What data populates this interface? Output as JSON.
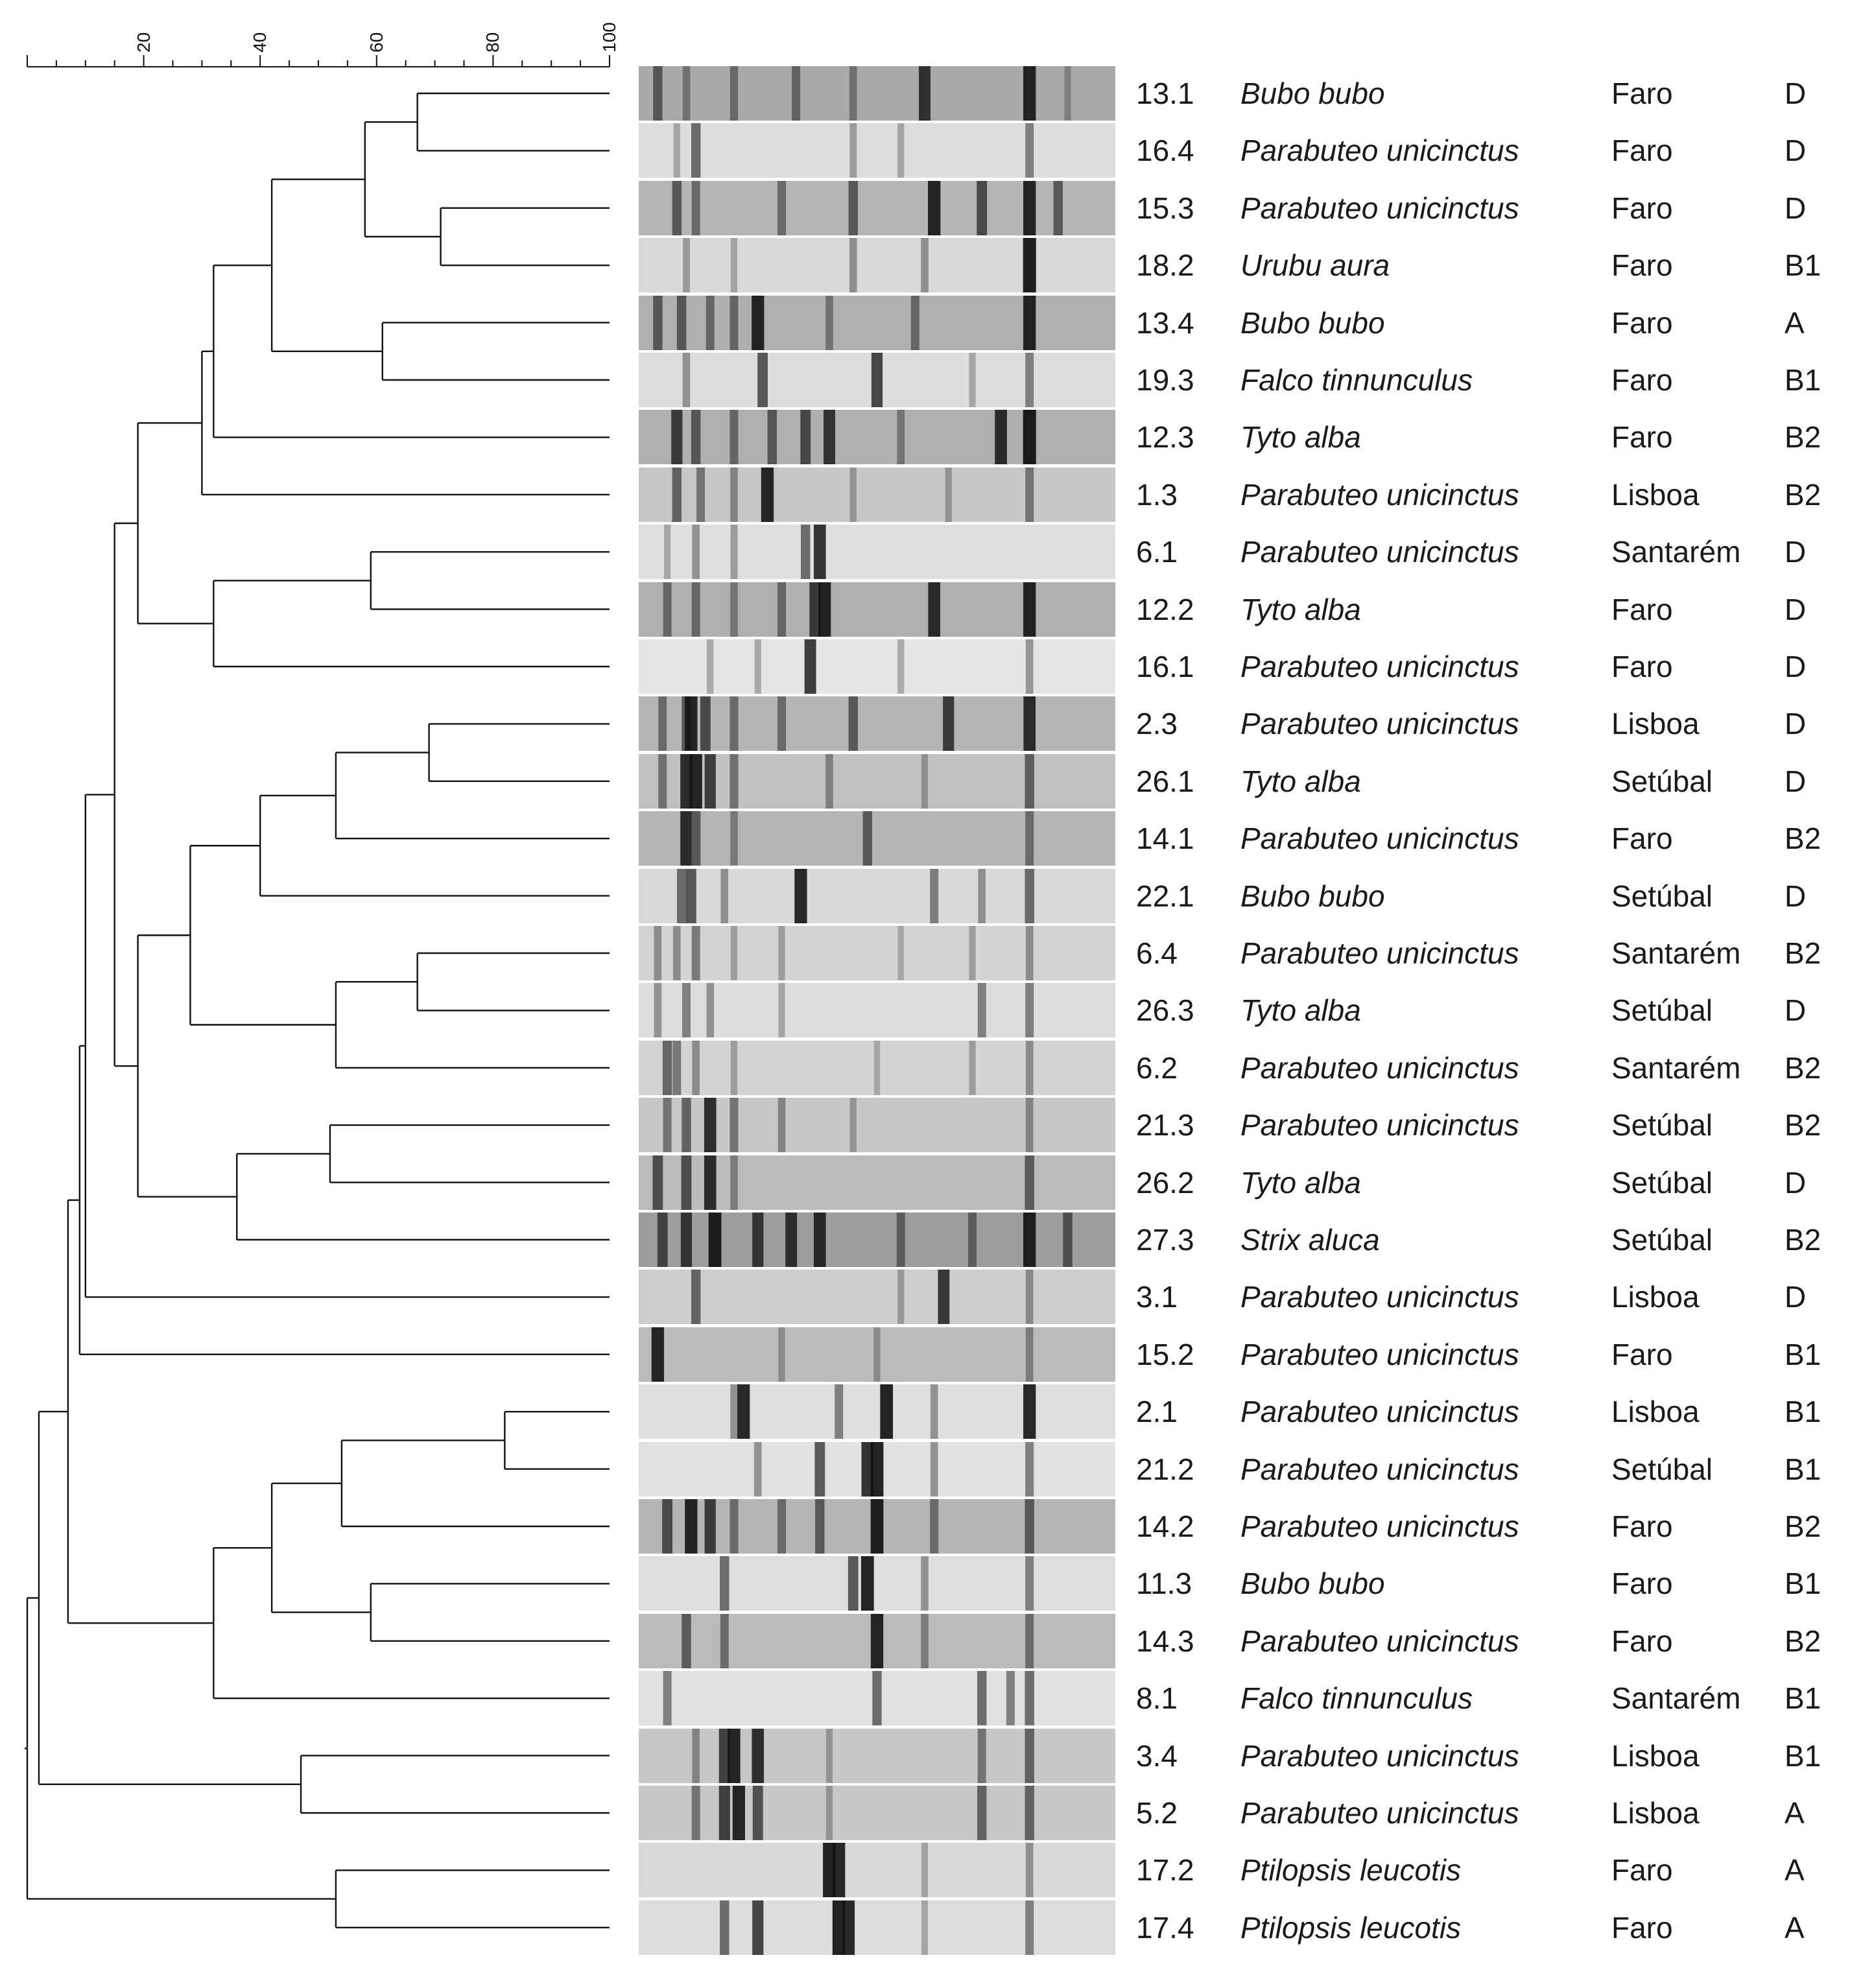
{
  "scale": {
    "ticks": [
      "20",
      "40",
      "60",
      "80",
      "100"
    ]
  },
  "isolates": [
    {
      "id": "13.1",
      "species": "Bubo bubo",
      "location": "Faro",
      "group": "D"
    },
    {
      "id": "16.4",
      "species": "Parabuteo unicinctus",
      "location": "Faro",
      "group": "D"
    },
    {
      "id": "15.3",
      "species": "Parabuteo unicinctus",
      "location": "Faro",
      "group": "D"
    },
    {
      "id": "18.2",
      "species": "Urubu aura",
      "location": "Faro",
      "group": "B1"
    },
    {
      "id": "13.4",
      "species": "Bubo bubo",
      "location": "Faro",
      "group": "A"
    },
    {
      "id": "19.3",
      "species": "Falco tinnunculus",
      "location": "Faro",
      "group": "B1"
    },
    {
      "id": "12.3",
      "species": "Tyto alba",
      "location": "Faro",
      "group": "B2"
    },
    {
      "id": "1.3",
      "species": "Parabuteo unicinctus",
      "location": "Lisboa",
      "group": "B2"
    },
    {
      "id": "6.1",
      "species": "Parabuteo unicinctus",
      "location": "Santarém",
      "group": "D"
    },
    {
      "id": "12.2",
      "species": "Tyto alba",
      "location": "Faro",
      "group": "D"
    },
    {
      "id": "16.1",
      "species": "Parabuteo unicinctus",
      "location": "Faro",
      "group": "D"
    },
    {
      "id": "2.3",
      "species": "Parabuteo unicinctus",
      "location": "Lisboa",
      "group": "D"
    },
    {
      "id": "26.1",
      "species": "Tyto alba",
      "location": "Setúbal",
      "group": "D"
    },
    {
      "id": "14.1",
      "species": "Parabuteo unicinctus",
      "location": "Faro",
      "group": "B2"
    },
    {
      "id": "22.1",
      "species": "Bubo bubo",
      "location": "Setúbal",
      "group": "D"
    },
    {
      "id": "6.4",
      "species": "Parabuteo unicinctus",
      "location": "Santarém",
      "group": "B2"
    },
    {
      "id": "26.3",
      "species": "Tyto alba",
      "location": "Setúbal",
      "group": "D"
    },
    {
      "id": "6.2",
      "species": "Parabuteo unicinctus",
      "location": "Santarém",
      "group": "B2"
    },
    {
      "id": "21.3",
      "species": "Parabuteo unicinctus",
      "location": "Setúbal",
      "group": "B2"
    },
    {
      "id": "26.2",
      "species": "Tyto alba",
      "location": "Setúbal",
      "group": "D"
    },
    {
      "id": "27.3",
      "species": "Strix aluca",
      "location": "Setúbal",
      "group": "B2"
    },
    {
      "id": "3.1",
      "species": "Parabuteo unicinctus",
      "location": "Lisboa",
      "group": "D"
    },
    {
      "id": "15.2",
      "species": "Parabuteo unicinctus",
      "location": "Faro",
      "group": "B1"
    },
    {
      "id": "2.1",
      "species": "Parabuteo unicinctus",
      "location": "Lisboa",
      "group": "B1"
    },
    {
      "id": "21.2",
      "species": "Parabuteo unicinctus",
      "location": "Setúbal",
      "group": "B1"
    },
    {
      "id": "14.2",
      "species": "Parabuteo unicinctus",
      "location": "Faro",
      "group": "B2"
    },
    {
      "id": "11.3",
      "species": "Bubo bubo",
      "location": "Faro",
      "group": "B1"
    },
    {
      "id": "14.3",
      "species": "Parabuteo unicinctus",
      "location": "Faro",
      "group": "B2"
    },
    {
      "id": "8.1",
      "species": "Falco tinnunculus",
      "location": "Santarém",
      "group": "B1"
    },
    {
      "id": "3.4",
      "species": "Parabuteo unicinctus",
      "location": "Lisboa",
      "group": "B1"
    },
    {
      "id": "5.2",
      "species": "Parabuteo unicinctus",
      "location": "Lisboa",
      "group": "A"
    },
    {
      "id": "17.2",
      "species": "Ptilopsis leucotis",
      "location": "Faro",
      "group": "A"
    },
    {
      "id": "17.4",
      "species": "Ptilopsis leucotis",
      "location": "Faro",
      "group": "A"
    }
  ],
  "dendrogram": {
    "nodes": [
      {
        "id": "n1",
        "a": 0,
        "b": 1,
        "similarity": 67
      },
      {
        "id": "n2",
        "a": 2,
        "b": 3,
        "similarity": 71
      },
      {
        "id": "n3",
        "a": "n1",
        "b": "n2",
        "similarity": 58
      },
      {
        "id": "n4",
        "a": 4,
        "b": 5,
        "similarity": 61
      },
      {
        "id": "n5",
        "a": "n3",
        "b": "n4",
        "similarity": 42
      },
      {
        "id": "n6",
        "a": "n5",
        "b": 6,
        "similarity": 32
      },
      {
        "id": "n7",
        "a": "n6",
        "b": 7,
        "similarity": 30
      },
      {
        "id": "n8",
        "a": 8,
        "b": 9,
        "similarity": 59
      },
      {
        "id": "n9",
        "a": "n8",
        "b": 10,
        "similarity": 32
      },
      {
        "id": "n10",
        "a": "n7",
        "b": "n9",
        "similarity": 19
      },
      {
        "id": "n11",
        "a": 11,
        "b": 12,
        "similarity": 69
      },
      {
        "id": "n12",
        "a": "n11",
        "b": 13,
        "similarity": 53
      },
      {
        "id": "n13",
        "a": "n12",
        "b": 14,
        "similarity": 40
      },
      {
        "id": "n14",
        "a": 15,
        "b": 16,
        "similarity": 67
      },
      {
        "id": "n15",
        "a": "n14",
        "b": 17,
        "similarity": 53
      },
      {
        "id": "n16",
        "a": "n13",
        "b": "n15",
        "similarity": 28
      },
      {
        "id": "n17",
        "a": 18,
        "b": 19,
        "similarity": 52
      },
      {
        "id": "n18",
        "a": "n17",
        "b": 20,
        "similarity": 36
      },
      {
        "id": "n19",
        "a": "n16",
        "b": "n18",
        "similarity": 19
      },
      {
        "id": "n20",
        "a": "n10",
        "b": "n19",
        "similarity": 15
      },
      {
        "id": "n21",
        "a": "n20",
        "b": 21,
        "similarity": 10
      },
      {
        "id": "n22",
        "a": "n21",
        "b": 22,
        "similarity": 9
      },
      {
        "id": "n23",
        "a": 23,
        "b": 24,
        "similarity": 82
      },
      {
        "id": "n24",
        "a": "n23",
        "b": 25,
        "similarity": 54
      },
      {
        "id": "n25",
        "a": 26,
        "b": 27,
        "similarity": 59
      },
      {
        "id": "n26",
        "a": "n24",
        "b": "n25",
        "similarity": 42
      },
      {
        "id": "n27",
        "a": "n26",
        "b": 28,
        "similarity": 32
      },
      {
        "id": "n28",
        "a": "n22",
        "b": "n27",
        "similarity": 7
      },
      {
        "id": "n29",
        "a": 29,
        "b": 30,
        "similarity": 47
      },
      {
        "id": "n30",
        "a": "n28",
        "b": "n29",
        "similarity": 2
      },
      {
        "id": "n31",
        "a": 31,
        "b": 32,
        "similarity": 53
      },
      {
        "id": "n32",
        "a": "n30",
        "b": "n31",
        "similarity": 0
      }
    ]
  },
  "gel_lanes": [
    {
      "bg": 0.55,
      "bands": [
        [
          0.04,
          0.6
        ],
        [
          0.1,
          0.4
        ],
        [
          0.2,
          0.45
        ],
        [
          0.33,
          0.5
        ],
        [
          0.45,
          0.4
        ],
        [
          0.6,
          0.85
        ],
        [
          0.82,
          0.95
        ],
        [
          0.9,
          0.3
        ]
      ]
    },
    {
      "bg": 0.12,
      "bands": [
        [
          0.08,
          0.3
        ],
        [
          0.12,
          0.6
        ],
        [
          0.45,
          0.35
        ],
        [
          0.55,
          0.3
        ],
        [
          0.82,
          0.5
        ]
      ]
    },
    {
      "bg": 0.45,
      "bands": [
        [
          0.08,
          0.6
        ],
        [
          0.12,
          0.5
        ],
        [
          0.3,
          0.5
        ],
        [
          0.45,
          0.6
        ],
        [
          0.62,
          0.95
        ],
        [
          0.72,
          0.7
        ],
        [
          0.82,
          0.95
        ],
        [
          0.88,
          0.6
        ]
      ]
    },
    {
      "bg": 0.15,
      "bands": [
        [
          0.1,
          0.35
        ],
        [
          0.2,
          0.3
        ],
        [
          0.45,
          0.4
        ],
        [
          0.6,
          0.4
        ],
        [
          0.82,
          1.0
        ]
      ]
    },
    {
      "bg": 0.5,
      "bands": [
        [
          0.04,
          0.6
        ],
        [
          0.09,
          0.6
        ],
        [
          0.15,
          0.5
        ],
        [
          0.2,
          0.5
        ],
        [
          0.25,
          0.95
        ],
        [
          0.4,
          0.4
        ],
        [
          0.58,
          0.5
        ],
        [
          0.82,
          0.95
        ]
      ]
    },
    {
      "bg": 0.12,
      "bands": [
        [
          0.1,
          0.4
        ],
        [
          0.26,
          0.7
        ],
        [
          0.5,
          0.8
        ],
        [
          0.7,
          0.3
        ],
        [
          0.82,
          0.5
        ]
      ]
    },
    {
      "bg": 0.5,
      "bands": [
        [
          0.08,
          0.8
        ],
        [
          0.12,
          0.6
        ],
        [
          0.2,
          0.5
        ],
        [
          0.28,
          0.6
        ],
        [
          0.35,
          0.7
        ],
        [
          0.4,
          0.85
        ],
        [
          0.55,
          0.4
        ],
        [
          0.76,
          0.9
        ],
        [
          0.82,
          1.0
        ]
      ]
    },
    {
      "bg": 0.3,
      "bands": [
        [
          0.08,
          0.6
        ],
        [
          0.13,
          0.5
        ],
        [
          0.2,
          0.4
        ],
        [
          0.27,
          0.95
        ],
        [
          0.45,
          0.3
        ],
        [
          0.65,
          0.3
        ],
        [
          0.82,
          0.5
        ]
      ]
    },
    {
      "bg": 0.1,
      "bands": [
        [
          0.06,
          0.3
        ],
        [
          0.12,
          0.4
        ],
        [
          0.2,
          0.35
        ],
        [
          0.35,
          0.6
        ],
        [
          0.38,
          0.9
        ]
      ]
    },
    {
      "bg": 0.5,
      "bands": [
        [
          0.06,
          0.5
        ],
        [
          0.12,
          0.5
        ],
        [
          0.2,
          0.4
        ],
        [
          0.3,
          0.5
        ],
        [
          0.37,
          0.8
        ],
        [
          0.39,
          0.95
        ],
        [
          0.62,
          0.9
        ],
        [
          0.82,
          0.95
        ]
      ]
    },
    {
      "bg": 0.05,
      "bands": [
        [
          0.15,
          0.3
        ],
        [
          0.25,
          0.3
        ],
        [
          0.36,
          0.85
        ],
        [
          0.55,
          0.3
        ],
        [
          0.82,
          0.4
        ]
      ]
    },
    {
      "bg": 0.45,
      "bands": [
        [
          0.05,
          0.5
        ],
        [
          0.1,
          0.6
        ],
        [
          0.11,
          0.95
        ],
        [
          0.14,
          0.7
        ],
        [
          0.2,
          0.5
        ],
        [
          0.3,
          0.5
        ],
        [
          0.45,
          0.6
        ],
        [
          0.65,
          0.8
        ],
        [
          0.82,
          0.9
        ]
      ]
    },
    {
      "bg": 0.35,
      "bands": [
        [
          0.05,
          0.5
        ],
        [
          0.1,
          0.9
        ],
        [
          0.12,
          0.95
        ],
        [
          0.15,
          0.8
        ],
        [
          0.2,
          0.5
        ],
        [
          0.4,
          0.4
        ],
        [
          0.6,
          0.3
        ],
        [
          0.82,
          0.6
        ]
      ]
    },
    {
      "bg": 0.45,
      "bands": [
        [
          0.1,
          0.9
        ],
        [
          0.12,
          0.6
        ],
        [
          0.2,
          0.4
        ],
        [
          0.48,
          0.6
        ],
        [
          0.82,
          0.5
        ]
      ]
    },
    {
      "bg": 0.15,
      "bands": [
        [
          0.09,
          0.6
        ],
        [
          0.11,
          0.7
        ],
        [
          0.18,
          0.4
        ],
        [
          0.34,
          0.95
        ],
        [
          0.62,
          0.5
        ],
        [
          0.72,
          0.4
        ],
        [
          0.82,
          0.6
        ]
      ]
    },
    {
      "bg": 0.2,
      "bands": [
        [
          0.04,
          0.4
        ],
        [
          0.08,
          0.4
        ],
        [
          0.12,
          0.5
        ],
        [
          0.2,
          0.3
        ],
        [
          0.3,
          0.3
        ],
        [
          0.55,
          0.25
        ],
        [
          0.7,
          0.3
        ],
        [
          0.82,
          0.4
        ]
      ]
    },
    {
      "bg": 0.12,
      "bands": [
        [
          0.04,
          0.4
        ],
        [
          0.1,
          0.5
        ],
        [
          0.15,
          0.4
        ],
        [
          0.3,
          0.3
        ],
        [
          0.72,
          0.5
        ],
        [
          0.82,
          0.5
        ]
      ]
    },
    {
      "bg": 0.2,
      "bands": [
        [
          0.06,
          0.6
        ],
        [
          0.08,
          0.5
        ],
        [
          0.12,
          0.4
        ],
        [
          0.2,
          0.3
        ],
        [
          0.5,
          0.25
        ],
        [
          0.7,
          0.3
        ],
        [
          0.82,
          0.4
        ]
      ]
    },
    {
      "bg": 0.3,
      "bands": [
        [
          0.06,
          0.5
        ],
        [
          0.1,
          0.6
        ],
        [
          0.15,
          0.9
        ],
        [
          0.2,
          0.5
        ],
        [
          0.3,
          0.4
        ],
        [
          0.45,
          0.3
        ],
        [
          0.82,
          0.4
        ]
      ]
    },
    {
      "bg": 0.4,
      "bands": [
        [
          0.04,
          0.7
        ],
        [
          0.1,
          0.7
        ],
        [
          0.15,
          0.9
        ],
        [
          0.2,
          0.4
        ],
        [
          0.82,
          0.6
        ]
      ]
    },
    {
      "bg": 0.65,
      "bands": [
        [
          0.05,
          0.7
        ],
        [
          0.1,
          0.8
        ],
        [
          0.16,
          0.98
        ],
        [
          0.25,
          0.8
        ],
        [
          0.32,
          0.85
        ],
        [
          0.38,
          0.9
        ],
        [
          0.55,
          0.5
        ],
        [
          0.7,
          0.5
        ],
        [
          0.82,
          0.95
        ],
        [
          0.9,
          0.6
        ]
      ]
    },
    {
      "bg": 0.25,
      "bands": [
        [
          0.12,
          0.6
        ],
        [
          0.55,
          0.3
        ],
        [
          0.64,
          0.85
        ],
        [
          0.82,
          0.4
        ]
      ]
    },
    {
      "bg": 0.4,
      "bands": [
        [
          0.04,
          0.95
        ],
        [
          0.3,
          0.3
        ],
        [
          0.5,
          0.3
        ],
        [
          0.82,
          0.4
        ]
      ]
    },
    {
      "bg": 0.1,
      "bands": [
        [
          0.2,
          0.4
        ],
        [
          0.22,
          0.95
        ],
        [
          0.42,
          0.5
        ],
        [
          0.52,
          0.98
        ],
        [
          0.62,
          0.4
        ],
        [
          0.82,
          0.95
        ]
      ]
    },
    {
      "bg": 0.08,
      "bands": [
        [
          0.25,
          0.4
        ],
        [
          0.38,
          0.7
        ],
        [
          0.48,
          0.9
        ],
        [
          0.5,
          0.98
        ],
        [
          0.62,
          0.4
        ],
        [
          0.82,
          0.5
        ]
      ]
    },
    {
      "bg": 0.45,
      "bands": [
        [
          0.06,
          0.7
        ],
        [
          0.11,
          0.95
        ],
        [
          0.15,
          0.8
        ],
        [
          0.2,
          0.5
        ],
        [
          0.3,
          0.5
        ],
        [
          0.38,
          0.6
        ],
        [
          0.5,
          0.98
        ],
        [
          0.62,
          0.5
        ],
        [
          0.82,
          0.6
        ]
      ]
    },
    {
      "bg": 0.1,
      "bands": [
        [
          0.18,
          0.6
        ],
        [
          0.45,
          0.7
        ],
        [
          0.48,
          0.98
        ],
        [
          0.6,
          0.4
        ],
        [
          0.82,
          0.5
        ]
      ]
    },
    {
      "bg": 0.4,
      "bands": [
        [
          0.1,
          0.6
        ],
        [
          0.18,
          0.5
        ],
        [
          0.5,
          0.95
        ],
        [
          0.6,
          0.4
        ],
        [
          0.82,
          0.5
        ]
      ]
    },
    {
      "bg": 0.08,
      "bands": [
        [
          0.06,
          0.5
        ],
        [
          0.5,
          0.6
        ],
        [
          0.72,
          0.6
        ],
        [
          0.78,
          0.5
        ],
        [
          0.82,
          0.6
        ]
      ]
    },
    {
      "bg": 0.3,
      "bands": [
        [
          0.12,
          0.4
        ],
        [
          0.18,
          0.8
        ],
        [
          0.2,
          0.95
        ],
        [
          0.25,
          0.9
        ],
        [
          0.4,
          0.3
        ],
        [
          0.72,
          0.5
        ],
        [
          0.82,
          0.6
        ]
      ]
    },
    {
      "bg": 0.3,
      "bands": [
        [
          0.12,
          0.5
        ],
        [
          0.18,
          0.8
        ],
        [
          0.21,
          0.95
        ],
        [
          0.25,
          0.7
        ],
        [
          0.4,
          0.3
        ],
        [
          0.72,
          0.6
        ],
        [
          0.82,
          0.6
        ]
      ]
    },
    {
      "bg": 0.15,
      "bands": [
        [
          0.4,
          0.98
        ],
        [
          0.42,
          0.95
        ],
        [
          0.6,
          0.3
        ],
        [
          0.82,
          0.4
        ]
      ]
    },
    {
      "bg": 0.12,
      "bands": [
        [
          0.18,
          0.6
        ],
        [
          0.25,
          0.8
        ],
        [
          0.42,
          0.98
        ],
        [
          0.44,
          0.95
        ],
        [
          0.6,
          0.3
        ],
        [
          0.82,
          0.5
        ]
      ]
    }
  ]
}
